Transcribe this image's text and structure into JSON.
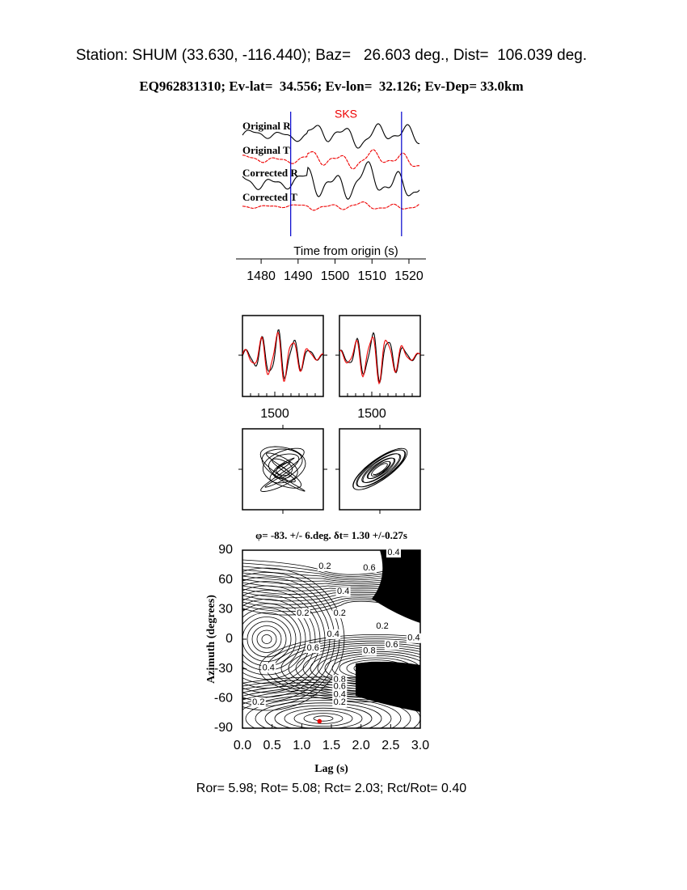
{
  "header": {
    "station": "Station: SHUM (33.630, -116.440); Baz=   26.603 deg., Dist=  106.039 deg.",
    "event": "EQ962831310; Ev-lat=  34.556; Ev-lon=  32.126; Ev-Dep= 33.0km"
  },
  "seismograms": {
    "phase": "SKS",
    "traces": [
      "Original R",
      "Original T",
      "Corrected R",
      "Corrected T"
    ],
    "xlabel": "Time from origin (s)",
    "xlim": [
      1473.2,
      1524.6
    ],
    "xticks": [
      1480,
      1490,
      1500,
      1510,
      1520
    ],
    "window": [
      1488,
      1518
    ]
  },
  "panels": [
    {
      "xticks": [
        1500
      ]
    },
    {
      "xticks": [
        1500
      ]
    }
  ],
  "grid_search": {
    "title": "φ= -83. +/- 6.deg. δt= 1.30 +/-0.27s",
    "xlabel": "Lag (s)",
    "ylabel": "Azimuth (degrees)",
    "xlim": [
      0,
      3
    ],
    "xticks": [
      {
        "value": 0,
        "label": "0.0"
      },
      0.5,
      {
        "value": 1,
        "label": "1.0"
      },
      1.5,
      {
        "value": 2,
        "label": "2.0"
      },
      2.5,
      {
        "value": 3,
        "label": "3.0"
      }
    ],
    "ylim": [
      -90,
      90
    ],
    "yticks": [
      -90,
      -60,
      -30,
      0,
      30,
      60,
      90
    ],
    "best_fit": {
      "lag": 1.3,
      "azimuth": -83
    },
    "contour_labels": [
      {
        "level": 0.2,
        "lag": 1.39,
        "azimuth": 73.6
      },
      {
        "level": 0.6,
        "lag": 2.14,
        "azimuth": 72
      },
      {
        "level": 0.4,
        "lag": 2.55,
        "azimuth": 87.5
      },
      {
        "level": 0.4,
        "lag": 1.7,
        "azimuth": 48
      },
      {
        "level": 0.2,
        "lag": 1.02,
        "azimuth": 26
      },
      {
        "level": 0.2,
        "lag": 1.64,
        "azimuth": 26
      },
      {
        "level": 0.2,
        "lag": 2.36,
        "azimuth": 13
      },
      {
        "level": 0.4,
        "lag": 1.53,
        "azimuth": 5
      },
      {
        "level": 0.6,
        "lag": 1.19,
        "azimuth": -9
      },
      {
        "level": 0.8,
        "lag": 2.14,
        "azimuth": -12
      },
      {
        "level": 0.6,
        "lag": 2.52,
        "azimuth": -6
      },
      {
        "level": 0.4,
        "lag": 2.89,
        "azimuth": 1
      },
      {
        "level": 0.4,
        "lag": 0.44,
        "azimuth": -29
      },
      {
        "level": 0.8,
        "lag": 1.64,
        "azimuth": -41
      },
      {
        "level": 0.6,
        "lag": 1.64,
        "azimuth": -48
      },
      {
        "level": 0.4,
        "lag": 1.64,
        "azimuth": -56
      },
      {
        "level": 0.2,
        "lag": 1.64,
        "azimuth": -64
      },
      {
        "level": 0.2,
        "lag": 0.27,
        "azimuth": -64
      }
    ]
  },
  "footer": "Ror= 5.98; Rot= 5.08; Rct= 2.03; Rct/Rot= 0.40"
}
